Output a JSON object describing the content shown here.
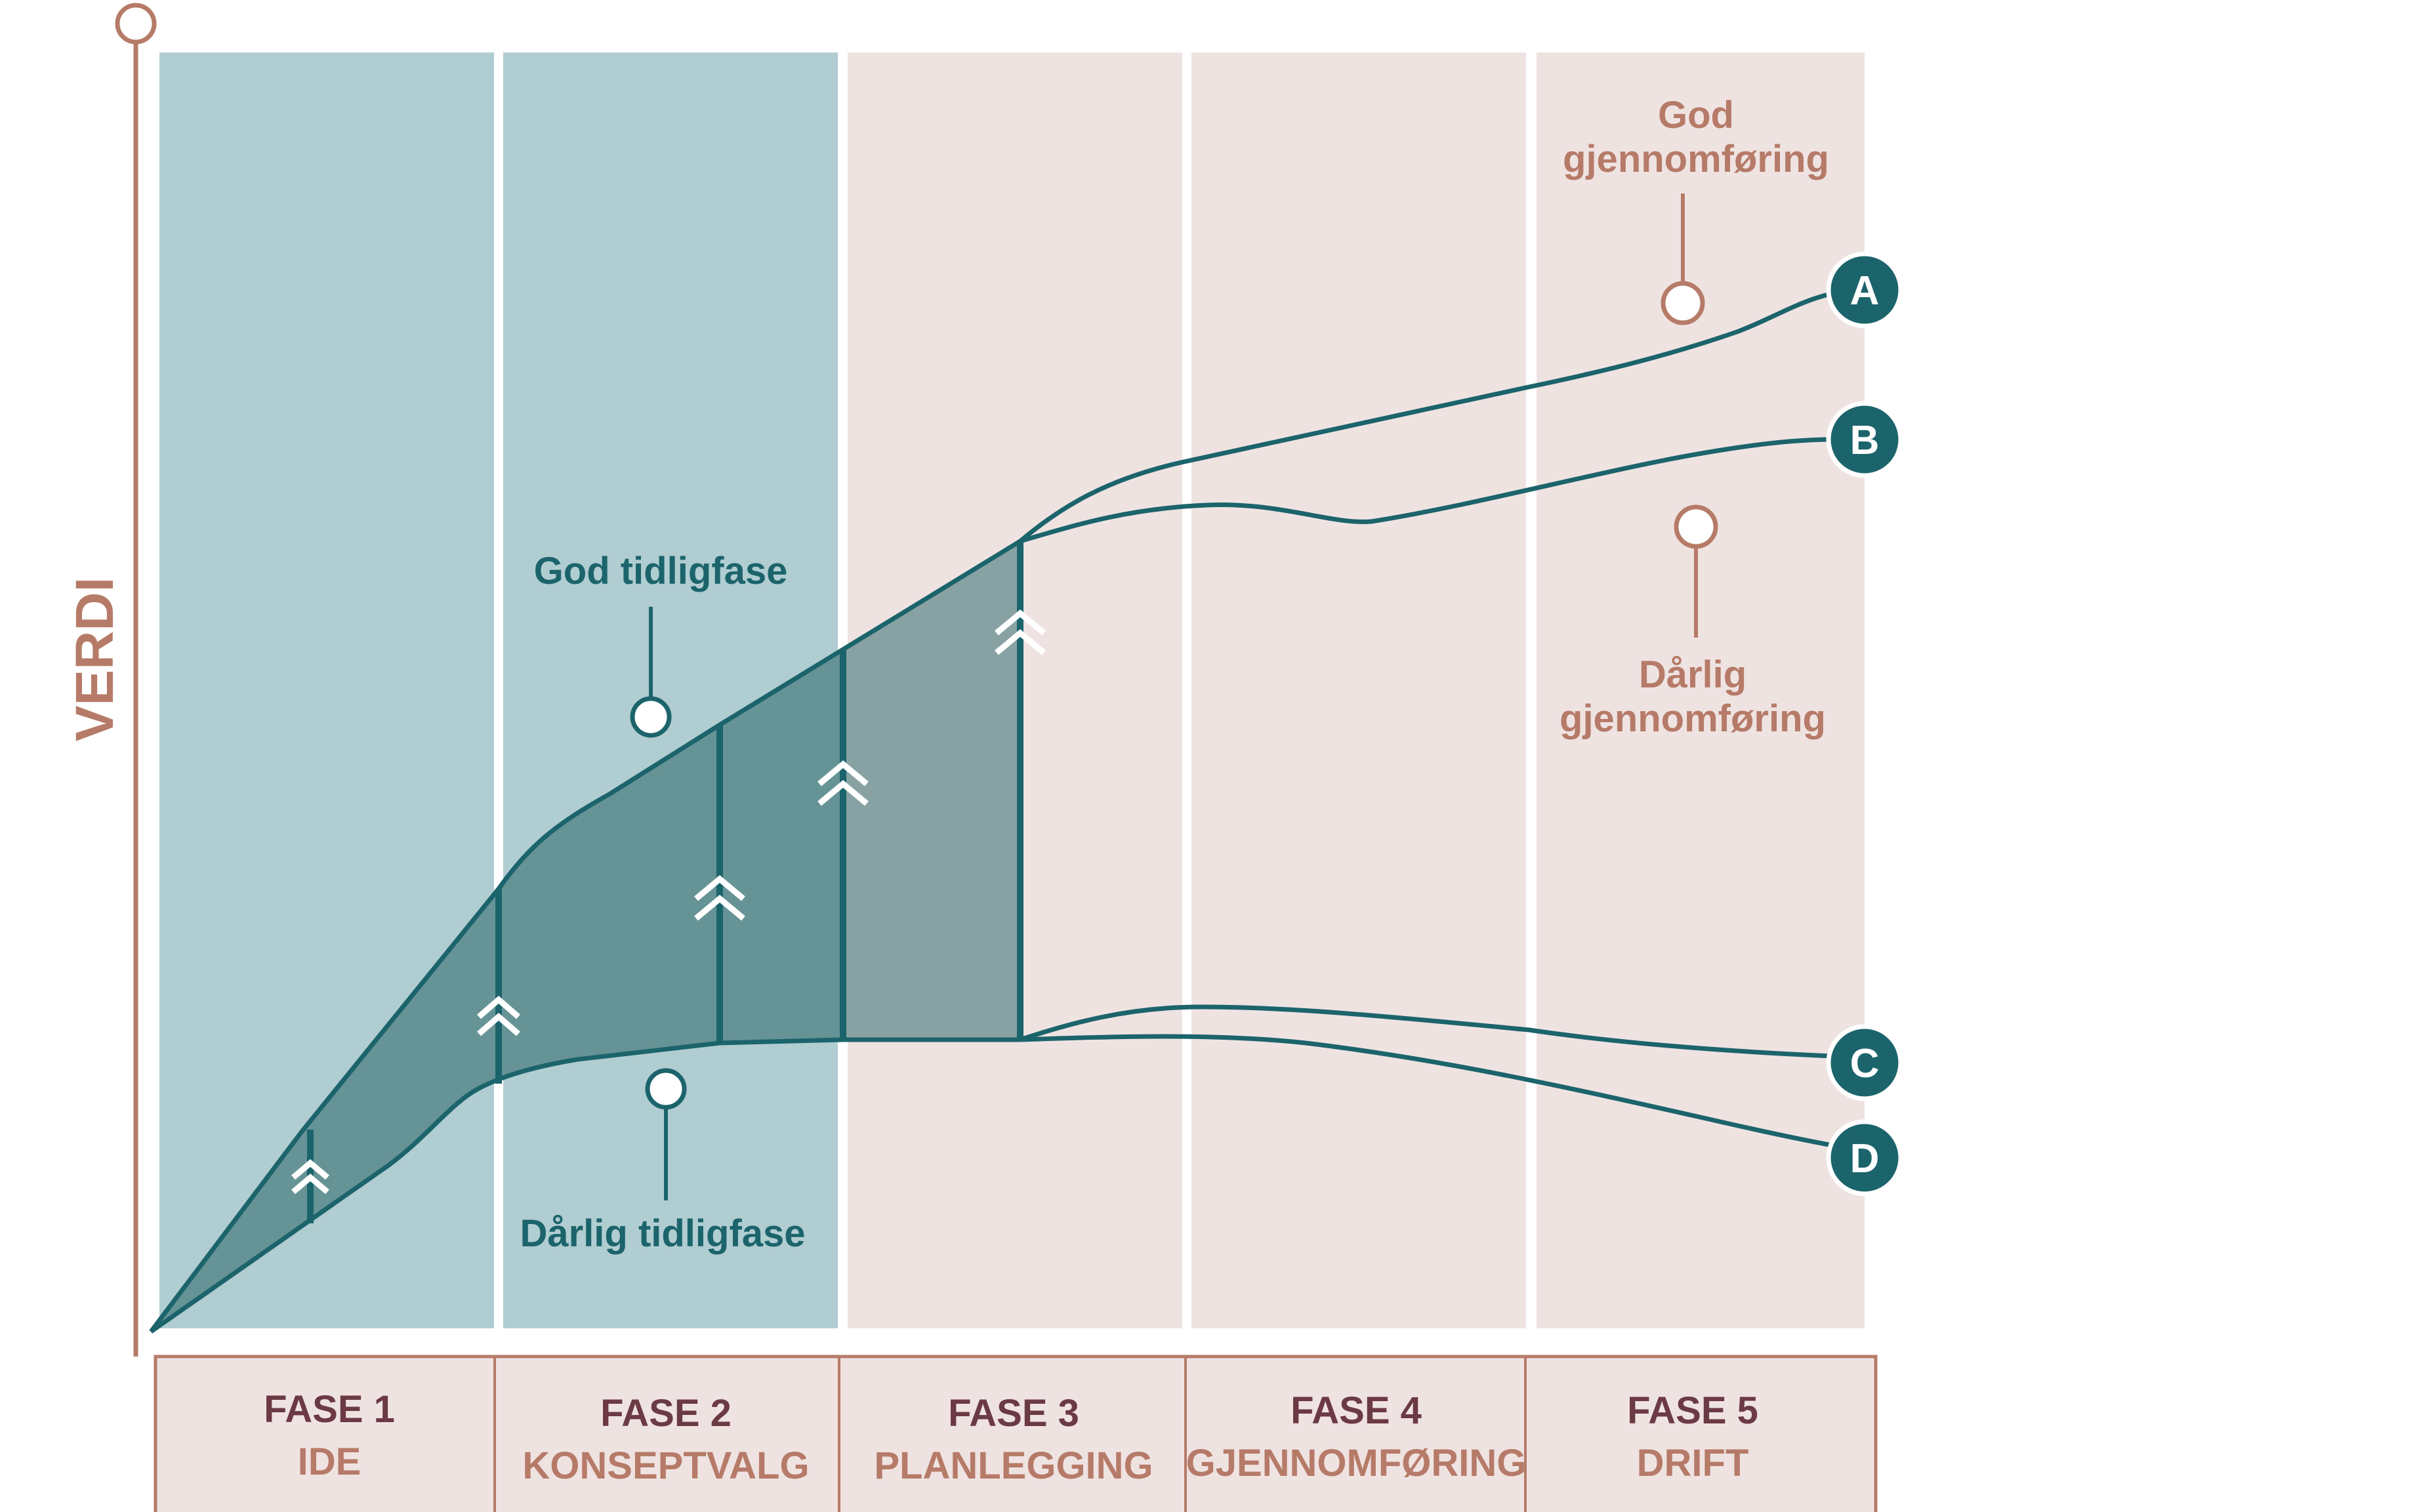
{
  "diagram": {
    "y_axis_label": "VERDI",
    "phases": [
      {
        "number": "FASE 1",
        "name": "IDE"
      },
      {
        "number": "FASE 2",
        "name": "KONSEPTVALG"
      },
      {
        "number": "FASE 3",
        "name": "PLANLEGGING"
      },
      {
        "number": "FASE 4",
        "name": "GJENNOMFØRING"
      },
      {
        "number": "FASE 5",
        "name": "DRIFT"
      }
    ],
    "annotations": {
      "good_early_phase": "God tidligfase",
      "poor_early_phase": "Dårlig tidligfase",
      "good_execution_line1": "God",
      "good_execution_line2": "gjennomføring",
      "poor_execution_line1": "Dårlig",
      "poor_execution_line2": "gjennomføring"
    },
    "end_labels": [
      "A",
      "B",
      "C",
      "D"
    ],
    "colors": {
      "early_phase_bg": "#b0cdd1",
      "later_phase_bg": "#efe3e2",
      "curve": "#1c646c",
      "fill_early": "#669396",
      "fill_planning": "#88a2a3",
      "axis": "#b67b68",
      "phase_number_text": "#6b3a44"
    }
  }
}
